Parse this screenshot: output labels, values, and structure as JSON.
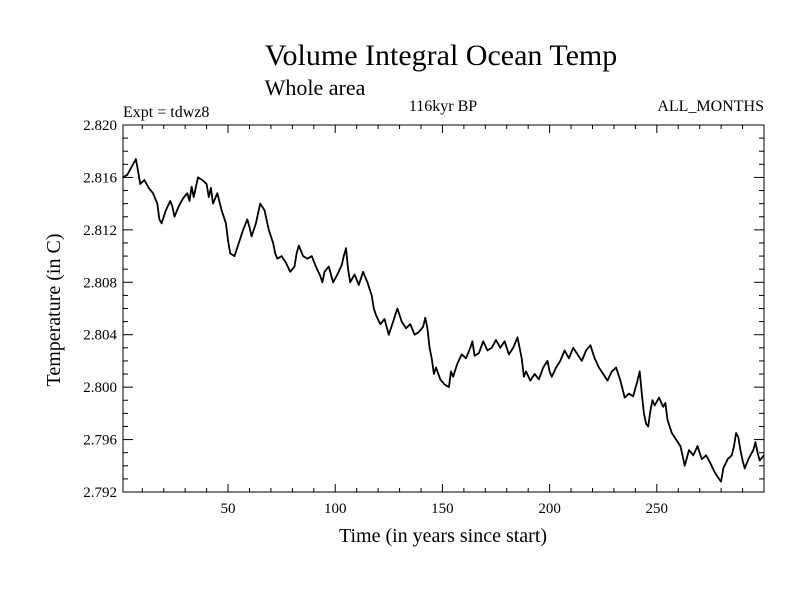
{
  "chart_data": {
    "type": "line",
    "title": "Volume Integral Ocean Temp",
    "subtitle": "Whole area",
    "annotations": {
      "experiment": "Expt = tdwz8",
      "period": "116kyr BP",
      "months": "ALL_MONTHS"
    },
    "xlabel": "Time (in years since start)",
    "ylabel": "Temperature (in C)",
    "xlim": [
      1,
      300
    ],
    "ylim": [
      2.792,
      2.82
    ],
    "x_ticks": [
      50,
      100,
      150,
      200,
      250
    ],
    "x_tick_labels": [
      "50",
      "100",
      "150",
      "200",
      "250"
    ],
    "y_ticks": [
      2.792,
      2.796,
      2.8,
      2.804,
      2.808,
      2.812,
      2.816,
      2.82
    ],
    "y_tick_labels": [
      "2.792",
      "2.796",
      "2.800",
      "2.804",
      "2.808",
      "2.812",
      "2.816",
      "2.820"
    ],
    "grid": false,
    "series": [
      {
        "color": "#000000",
        "points": [
          [
            1,
            2.816
          ],
          [
            3,
            2.8162
          ],
          [
            5,
            2.8168
          ],
          [
            7,
            2.8174
          ],
          [
            8,
            2.8165
          ],
          [
            9,
            2.8155
          ],
          [
            11,
            2.8158
          ],
          [
            13,
            2.8152
          ],
          [
            15,
            2.8148
          ],
          [
            17,
            2.814
          ],
          [
            18,
            2.8128
          ],
          [
            19,
            2.8125
          ],
          [
            21,
            2.8135
          ],
          [
            23,
            2.8142
          ],
          [
            24,
            2.8138
          ],
          [
            25,
            2.813
          ],
          [
            27,
            2.8138
          ],
          [
            29,
            2.8144
          ],
          [
            31,
            2.8148
          ],
          [
            32,
            2.8142
          ],
          [
            33,
            2.8153
          ],
          [
            34,
            2.8145
          ],
          [
            36,
            2.816
          ],
          [
            38,
            2.8158
          ],
          [
            40,
            2.8155
          ],
          [
            41,
            2.8145
          ],
          [
            42,
            2.8152
          ],
          [
            43,
            2.814
          ],
          [
            45,
            2.8148
          ],
          [
            47,
            2.8135
          ],
          [
            49,
            2.8125
          ],
          [
            50,
            2.8112
          ],
          [
            51,
            2.8102
          ],
          [
            53,
            2.81
          ],
          [
            55,
            2.811
          ],
          [
            57,
            2.812
          ],
          [
            59,
            2.8128
          ],
          [
            60,
            2.8122
          ],
          [
            61,
            2.8115
          ],
          [
            63,
            2.8125
          ],
          [
            65,
            2.814
          ],
          [
            67,
            2.8135
          ],
          [
            69,
            2.812
          ],
          [
            71,
            2.811
          ],
          [
            72,
            2.8102
          ],
          [
            73,
            2.8098
          ],
          [
            75,
            2.81
          ],
          [
            77,
            2.8095
          ],
          [
            79,
            2.8088
          ],
          [
            81,
            2.8092
          ],
          [
            82,
            2.8102
          ],
          [
            83,
            2.8108
          ],
          [
            85,
            2.81
          ],
          [
            87,
            2.8098
          ],
          [
            89,
            2.81
          ],
          [
            91,
            2.8092
          ],
          [
            93,
            2.8085
          ],
          [
            94,
            2.808
          ],
          [
            95,
            2.8088
          ],
          [
            97,
            2.8092
          ],
          [
            99,
            2.808
          ],
          [
            101,
            2.8086
          ],
          [
            103,
            2.8093
          ],
          [
            104,
            2.81
          ],
          [
            105,
            2.8106
          ],
          [
            106,
            2.809
          ],
          [
            107,
            2.808
          ],
          [
            109,
            2.8086
          ],
          [
            111,
            2.8078
          ],
          [
            113,
            2.8088
          ],
          [
            115,
            2.808
          ],
          [
            117,
            2.807
          ],
          [
            118,
            2.806
          ],
          [
            119,
            2.8055
          ],
          [
            121,
            2.8048
          ],
          [
            123,
            2.8052
          ],
          [
            125,
            2.804
          ],
          [
            127,
            2.805
          ],
          [
            129,
            2.806
          ],
          [
            131,
            2.805
          ],
          [
            133,
            2.8045
          ],
          [
            135,
            2.8048
          ],
          [
            137,
            2.804
          ],
          [
            139,
            2.8042
          ],
          [
            141,
            2.8046
          ],
          [
            142,
            2.8053
          ],
          [
            143,
            2.8045
          ],
          [
            144,
            2.803
          ],
          [
            145,
            2.8022
          ],
          [
            146,
            2.801
          ],
          [
            147,
            2.8015
          ],
          [
            149,
            2.8006
          ],
          [
            151,
            2.8002
          ],
          [
            153,
            2.8
          ],
          [
            154,
            2.8012
          ],
          [
            155,
            2.8008
          ],
          [
            157,
            2.8018
          ],
          [
            159,
            2.8025
          ],
          [
            161,
            2.8022
          ],
          [
            163,
            2.803
          ],
          [
            164,
            2.8035
          ],
          [
            165,
            2.8024
          ],
          [
            167,
            2.8026
          ],
          [
            169,
            2.8035
          ],
          [
            171,
            2.8028
          ],
          [
            173,
            2.803
          ],
          [
            175,
            2.8036
          ],
          [
            177,
            2.803
          ],
          [
            179,
            2.8035
          ],
          [
            181,
            2.8025
          ],
          [
            183,
            2.803
          ],
          [
            185,
            2.8038
          ],
          [
            186,
            2.803
          ],
          [
            187,
            2.8022
          ],
          [
            188,
            2.8008
          ],
          [
            189,
            2.8012
          ],
          [
            191,
            2.8005
          ],
          [
            193,
            2.801
          ],
          [
            195,
            2.8006
          ],
          [
            197,
            2.8015
          ],
          [
            199,
            2.802
          ],
          [
            200,
            2.8012
          ],
          [
            201,
            2.8008
          ],
          [
            203,
            2.8015
          ],
          [
            205,
            2.802
          ],
          [
            207,
            2.8028
          ],
          [
            209,
            2.8022
          ],
          [
            211,
            2.803
          ],
          [
            213,
            2.8025
          ],
          [
            215,
            2.802
          ],
          [
            217,
            2.8028
          ],
          [
            219,
            2.8032
          ],
          [
            221,
            2.8022
          ],
          [
            223,
            2.8015
          ],
          [
            225,
            2.801
          ],
          [
            227,
            2.8005
          ],
          [
            229,
            2.8012
          ],
          [
            231,
            2.8015
          ],
          [
            233,
            2.8005
          ],
          [
            235,
            2.7992
          ],
          [
            237,
            2.7995
          ],
          [
            239,
            2.7993
          ],
          [
            241,
            2.8005
          ],
          [
            242,
            2.8012
          ],
          [
            243,
            2.7995
          ],
          [
            244,
            2.798
          ],
          [
            245,
            2.7972
          ],
          [
            246,
            2.797
          ],
          [
            247,
            2.7982
          ],
          [
            248,
            2.799
          ],
          [
            249,
            2.7986
          ],
          [
            251,
            2.7992
          ],
          [
            253,
            2.7985
          ],
          [
            254,
            2.7988
          ],
          [
            255,
            2.7975
          ],
          [
            257,
            2.7965
          ],
          [
            259,
            2.796
          ],
          [
            261,
            2.7955
          ],
          [
            262,
            2.7948
          ],
          [
            263,
            2.794
          ],
          [
            265,
            2.7952
          ],
          [
            267,
            2.7948
          ],
          [
            269,
            2.7955
          ],
          [
            271,
            2.7945
          ],
          [
            273,
            2.7948
          ],
          [
            275,
            2.7942
          ],
          [
            277,
            2.7935
          ],
          [
            279,
            2.793
          ],
          [
            280,
            2.7928
          ],
          [
            281,
            2.7938
          ],
          [
            283,
            2.7945
          ],
          [
            285,
            2.7948
          ],
          [
            286,
            2.7955
          ],
          [
            287,
            2.7965
          ],
          [
            288,
            2.7962
          ],
          [
            289,
            2.7952
          ],
          [
            290,
            2.7944
          ],
          [
            291,
            2.7938
          ],
          [
            293,
            2.7946
          ],
          [
            295,
            2.7952
          ],
          [
            296,
            2.7958
          ],
          [
            297,
            2.795
          ],
          [
            298,
            2.7944
          ],
          [
            300,
            2.7948
          ]
        ]
      }
    ]
  }
}
